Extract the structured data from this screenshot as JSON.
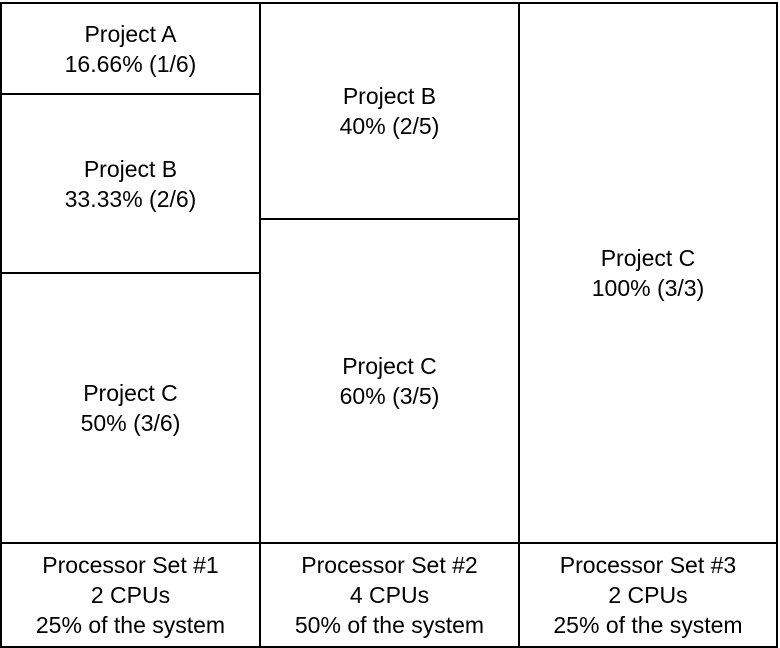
{
  "processor_sets": [
    {
      "name": "Processor Set #1",
      "cpus": "2 CPUs",
      "share": "25% of the system",
      "projects": [
        {
          "name": "Project A",
          "share": "16.66% (1/6)",
          "fraction": 0.1666
        },
        {
          "name": "Project B",
          "share": "33.33% (2/6)",
          "fraction": 0.3333
        },
        {
          "name": "Project C",
          "share": "50% (3/6)",
          "fraction": 0.5
        }
      ]
    },
    {
      "name": "Processor Set #2",
      "cpus": "4 CPUs",
      "share": "50% of the system",
      "projects": [
        {
          "name": "Project B",
          "share": "40% (2/5)",
          "fraction": 0.4
        },
        {
          "name": "Project C",
          "share": "60% (3/5)",
          "fraction": 0.6
        }
      ]
    },
    {
      "name": "Processor Set #3",
      "cpus": "2 CPUs",
      "share": "25% of the system",
      "projects": [
        {
          "name": "Project C",
          "share": "100% (3/3)",
          "fraction": 1.0
        }
      ]
    }
  ]
}
